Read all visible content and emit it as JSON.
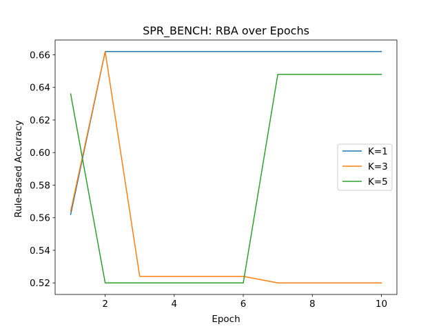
{
  "chart_data": {
    "type": "line",
    "title": "SPR_BENCH: RBA over Epochs",
    "xlabel": "Epoch",
    "ylabel": "Rule-Based Accuracy",
    "x": [
      1,
      2,
      3,
      4,
      5,
      6,
      7,
      8,
      9,
      10
    ],
    "xlim": [
      0.55,
      10.45
    ],
    "ylim": [
      0.5129,
      0.6691
    ],
    "xticks": [
      2,
      4,
      6,
      8,
      10
    ],
    "yticks": [
      0.52,
      0.54,
      0.56,
      0.58,
      0.6,
      0.62,
      0.64,
      0.66
    ],
    "ytick_labels": [
      "0.52",
      "0.54",
      "0.56",
      "0.58",
      "0.60",
      "0.62",
      "0.64",
      "0.66"
    ],
    "grid": false,
    "legend_position": "center-right",
    "series": [
      {
        "name": "K=1",
        "color": "#1f77b4",
        "values": [
          0.562,
          0.662,
          0.662,
          0.662,
          0.662,
          0.662,
          0.662,
          0.662,
          0.662,
          0.662
        ]
      },
      {
        "name": "K=3",
        "color": "#ff7f0e",
        "values": [
          0.564,
          0.662,
          0.524,
          0.524,
          0.524,
          0.524,
          0.52,
          0.52,
          0.52,
          0.52
        ]
      },
      {
        "name": "K=5",
        "color": "#2ca02c",
        "values": [
          0.636,
          0.52,
          0.52,
          0.52,
          0.52,
          0.52,
          0.648,
          0.648,
          0.648,
          0.648
        ]
      }
    ]
  }
}
